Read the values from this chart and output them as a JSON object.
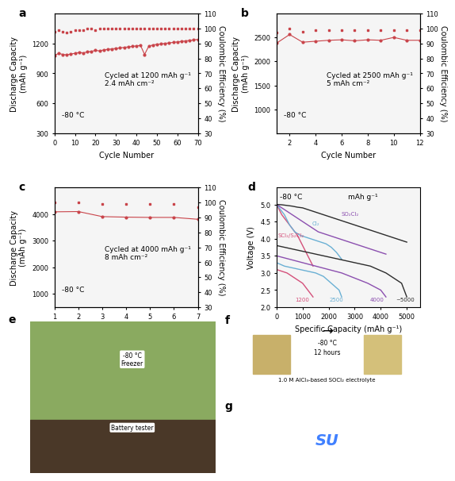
{
  "panel_a": {
    "cycle_numbers": [
      0,
      2,
      4,
      6,
      8,
      10,
      12,
      14,
      16,
      18,
      20,
      22,
      24,
      26,
      28,
      30,
      32,
      34,
      36,
      38,
      40,
      42,
      44,
      46,
      48,
      50,
      52,
      54,
      56,
      58,
      60,
      62,
      64,
      66,
      68,
      70
    ],
    "discharge_capacity": [
      1080,
      1100,
      1090,
      1085,
      1095,
      1100,
      1110,
      1105,
      1115,
      1120,
      1130,
      1125,
      1135,
      1140,
      1145,
      1150,
      1155,
      1160,
      1165,
      1170,
      1175,
      1180,
      1090,
      1170,
      1185,
      1190,
      1195,
      1200,
      1205,
      1210,
      1215,
      1220,
      1225,
      1230,
      1235,
      1240
    ],
    "coulombic_efficiency": [
      98,
      99,
      98,
      97,
      98,
      99,
      99,
      99,
      100,
      100,
      99,
      100,
      100,
      100,
      100,
      100,
      100,
      100,
      100,
      100,
      100,
      100,
      100,
      100,
      100,
      100,
      100,
      100,
      100,
      100,
      100,
      100,
      100,
      100,
      100,
      100
    ],
    "annotation": "Cycled at 1200 mAh g⁻¹\n2.4 mAh cm⁻²",
    "temp_label": "-80 °C",
    "xlim": [
      0,
      70
    ],
    "ylim_left": [
      300,
      1500
    ],
    "ylim_right": [
      30,
      110
    ],
    "yticks_left": [
      300,
      600,
      900,
      1200
    ],
    "yticks_right": [
      30,
      40,
      50,
      60,
      70,
      80,
      90,
      100,
      110
    ],
    "xticks": [
      0,
      10,
      20,
      30,
      40,
      50,
      60,
      70
    ]
  },
  "panel_b": {
    "cycle_numbers": [
      1,
      2,
      3,
      4,
      5,
      6,
      7,
      8,
      9,
      10,
      11,
      12
    ],
    "discharge_capacity": [
      2380,
      2560,
      2400,
      2420,
      2440,
      2450,
      2430,
      2450,
      2440,
      2500,
      2440,
      2440
    ],
    "coulombic_efficiency": [
      97,
      100,
      98,
      99,
      99,
      99,
      99,
      99,
      99,
      99,
      99,
      99
    ],
    "annotation": "Cycled at 2500 mAh g⁻¹\n5 mAh cm⁻²",
    "temp_label": "-80 °C",
    "xlim": [
      1,
      12
    ],
    "ylim_left": [
      500,
      3000
    ],
    "ylim_right": [
      30,
      110
    ],
    "yticks_left": [
      1000,
      1500,
      2000,
      2500
    ],
    "yticks_right": [
      30,
      40,
      50,
      60,
      70,
      80,
      90,
      100,
      110
    ],
    "xticks": [
      2,
      4,
      6,
      8,
      10,
      12
    ]
  },
  "panel_c": {
    "cycle_numbers": [
      1,
      2,
      3,
      4,
      5,
      6,
      7
    ],
    "discharge_capacity": [
      4080,
      4090,
      3900,
      3880,
      3870,
      3870,
      3800
    ],
    "coulombic_efficiency": [
      100,
      100,
      99,
      99,
      99,
      99,
      97
    ],
    "annotation": "Cycled at 4000 mAh g⁻¹\n8 mAh cm⁻²",
    "temp_label": "-80 °C",
    "xlim": [
      1,
      7
    ],
    "ylim_left": [
      500,
      5000
    ],
    "ylim_right": [
      30,
      110
    ],
    "yticks_left": [
      1000,
      2000,
      3000,
      4000
    ],
    "yticks_right": [
      30,
      40,
      50,
      60,
      70,
      80,
      90,
      100,
      110
    ],
    "xticks": [
      1,
      2,
      3,
      4,
      5,
      6,
      7
    ]
  },
  "panel_d": {
    "temp_label": "-80 °C",
    "unit_label": "mAh g⁻¹",
    "curves": [
      {
        "label": "SCl₂/S₂Cl₂",
        "color": "#d4507a",
        "x_discharge": [
          0,
          200,
          400,
          600,
          800,
          1000,
          1200,
          1400
        ],
        "y_discharge": [
          3.1,
          3.05,
          3.0,
          2.9,
          2.8,
          2.7,
          2.5,
          2.3
        ],
        "x_charge": [
          1400,
          1200,
          1000,
          800,
          600,
          400,
          200,
          0
        ],
        "y_charge": [
          3.2,
          3.5,
          3.8,
          4.1,
          4.3,
          4.5,
          4.7,
          5.0
        ],
        "capacity_label": "~1200"
      },
      {
        "label": "Cl₂",
        "color": "#6ab0d4",
        "x_discharge": [
          0,
          300,
          600,
          900,
          1200,
          1500,
          1800,
          2100,
          2400,
          2500
        ],
        "y_discharge": [
          3.3,
          3.2,
          3.15,
          3.1,
          3.05,
          3.0,
          2.9,
          2.7,
          2.5,
          2.3
        ],
        "x_charge": [
          2500,
          2300,
          2100,
          1900,
          1700,
          1500,
          1300,
          1100,
          900,
          700,
          500,
          300,
          0
        ],
        "y_charge": [
          3.4,
          3.6,
          3.75,
          3.85,
          3.9,
          3.95,
          4.0,
          4.05,
          4.1,
          4.2,
          4.4,
          4.7,
          5.0
        ],
        "capacity_label": "2500"
      },
      {
        "label": "SO₂Cl₂",
        "color": "#8b4faf",
        "x_discharge": [
          0,
          500,
          1000,
          1500,
          2000,
          2500,
          3000,
          3500,
          4000,
          4200
        ],
        "y_discharge": [
          3.5,
          3.4,
          3.3,
          3.2,
          3.1,
          3.0,
          2.85,
          2.7,
          2.5,
          2.3
        ],
        "x_charge": [
          4200,
          4000,
          3800,
          3600,
          3400,
          3200,
          3000,
          2800,
          2600,
          2400,
          2200,
          2000,
          1800,
          1600,
          1400,
          1200,
          1000,
          800,
          600,
          400,
          200,
          0
        ],
        "y_charge": [
          3.55,
          3.6,
          3.65,
          3.7,
          3.75,
          3.8,
          3.85,
          3.9,
          3.95,
          4.0,
          4.05,
          4.1,
          4.15,
          4.2,
          4.3,
          4.4,
          4.5,
          4.6,
          4.7,
          4.8,
          4.9,
          5.0
        ],
        "capacity_label": "4000"
      },
      {
        "label": "~5000",
        "color": "#2c2c2c",
        "x_discharge": [
          0,
          600,
          1200,
          1800,
          2400,
          3000,
          3600,
          4200,
          4800,
          5000
        ],
        "y_discharge": [
          3.8,
          3.7,
          3.6,
          3.5,
          3.4,
          3.3,
          3.2,
          3.0,
          2.7,
          2.3
        ],
        "x_charge": [
          5000,
          4800,
          4600,
          4400,
          4200,
          4000,
          3800,
          3600,
          3400,
          3200,
          3000,
          2800,
          2600,
          2400,
          2200,
          2000,
          1800,
          1600,
          1400,
          1200,
          1000,
          800,
          600,
          400,
          200,
          0
        ],
        "y_charge": [
          3.9,
          3.95,
          4.0,
          4.05,
          4.1,
          4.15,
          4.2,
          4.25,
          4.3,
          4.35,
          4.4,
          4.45,
          4.5,
          4.55,
          4.6,
          4.65,
          4.7,
          4.75,
          4.8,
          4.85,
          4.9,
          4.92,
          4.95,
          4.97,
          4.99,
          5.0
        ],
        "capacity_label": "~5000"
      }
    ],
    "xlim": [
      0,
      5500
    ],
    "ylim": [
      2.0,
      5.5
    ],
    "xticks": [
      0,
      1000,
      2000,
      3000,
      4000,
      5000
    ],
    "yticks": [
      2.0,
      2.5,
      3.0,
      3.5,
      4.0,
      4.5,
      5.0
    ]
  },
  "data_color": "#c9444a",
  "bg_color": "#f5f5f5",
  "panel_label_fontsize": 10,
  "axis_label_fontsize": 7,
  "tick_fontsize": 6,
  "annotation_fontsize": 6.5
}
